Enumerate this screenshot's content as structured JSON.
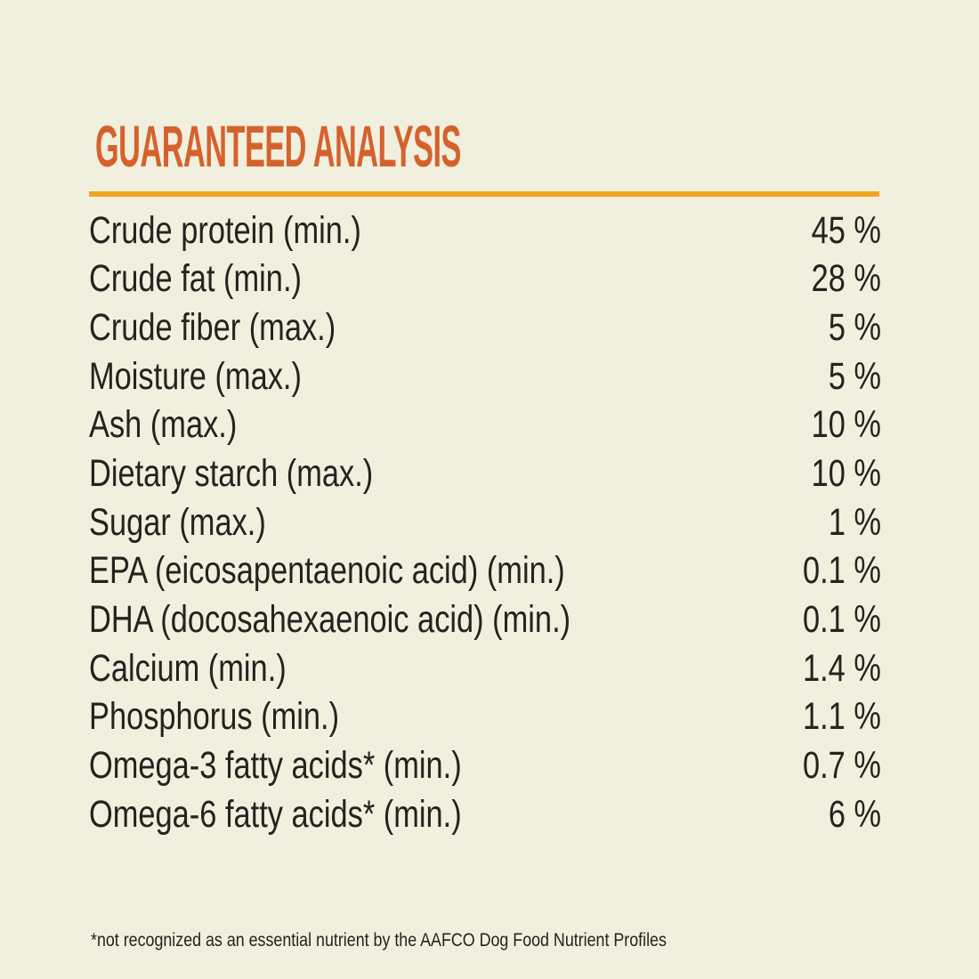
{
  "theme": {
    "background_color": "#f1efde",
    "heading_color": "#d5622c",
    "rule_color": "#f1a51f",
    "text_color": "#23231f"
  },
  "header": {
    "title": "GUARANTEED ANALYSIS"
  },
  "analysis": {
    "rows": [
      {
        "label": "Crude protein (min.)",
        "value": "45 %"
      },
      {
        "label": "Crude fat (min.)",
        "value": "28 %"
      },
      {
        "label": "Crude fiber (max.)",
        "value": "5 %"
      },
      {
        "label": "Moisture (max.)",
        "value": "5 %"
      },
      {
        "label": "Ash (max.)",
        "value": "10 %"
      },
      {
        "label": "Dietary starch (max.)",
        "value": "10 %"
      },
      {
        "label": "Sugar (max.)",
        "value": "1 %"
      },
      {
        "label": "EPA (eicosapentaenoic acid) (min.)",
        "value": "0.1 %"
      },
      {
        "label": "DHA (docosahexaenoic acid) (min.)",
        "value": "0.1 %"
      },
      {
        "label": "Calcium (min.)",
        "value": "1.4 %"
      },
      {
        "label": "Phosphorus (min.)",
        "value": "1.1 %"
      },
      {
        "label": "Omega-3 fatty acids* (min.)",
        "value": "0.7 %"
      },
      {
        "label": "Omega-6 fatty acids* (min.)",
        "value": "6 %"
      }
    ]
  },
  "footnote": "*not recognized as an essential nutrient by the AAFCO Dog Food Nutrient Profiles"
}
